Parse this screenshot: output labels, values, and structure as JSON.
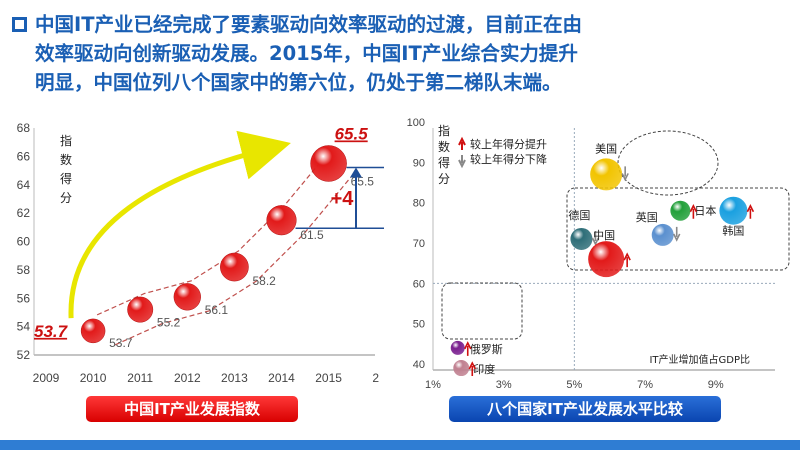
{
  "heading": {
    "line1": "中国IT产业已经完成了要素驱动向效率驱动的过渡，目前正在由",
    "line2": "效率驱动向创新驱动发展。2015年，中国IT产业综合实力提升",
    "line3": "明显，中国位列八个国家中的第六位，仍处于第二梯队末端。"
  },
  "colors": {
    "heading": "#1a5fb4",
    "red_bubble": "#e21a1a",
    "caption_red": "#e00000",
    "caption_blue": "#1256c0"
  },
  "chart_data": [
    {
      "type": "line",
      "title": "中国IT产业发展指数",
      "ylabel_chars": [
        "指",
        "数",
        "得",
        "分"
      ],
      "x_ticks": [
        "2009",
        "2010",
        "2011",
        "2012",
        "2013",
        "2014",
        "2015",
        "2"
      ],
      "y_ticks": [
        "52",
        "54",
        "56",
        "58",
        "60",
        "62",
        "64",
        "66",
        "68"
      ],
      "ylim": [
        52,
        68
      ],
      "points": [
        {
          "year": "2010",
          "value": 53.7,
          "label": "53.7"
        },
        {
          "year": "2011",
          "value": 55.2,
          "label": "55.2"
        },
        {
          "year": "2012",
          "value": 56.1,
          "label": "56.1"
        },
        {
          "year": "2013",
          "value": 58.2,
          "label": "58.2"
        },
        {
          "year": "2014",
          "value": 61.5,
          "label": "61.5"
        },
        {
          "year": "2015",
          "value": 65.5,
          "label": "65.5"
        }
      ],
      "start_callout": "53.7",
      "end_callout": "65.5",
      "delta_label": "+4"
    },
    {
      "type": "scatter",
      "title": "八个国家IT产业发展水平比较",
      "ylabel_chars": [
        "指",
        "数",
        "得",
        "分"
      ],
      "xlabel": "IT产业增加值占GDP比",
      "x_ticks": [
        "1%",
        "3%",
        "5%",
        "7%",
        "9%"
      ],
      "y_ticks": [
        "40",
        "50",
        "60",
        "70",
        "80",
        "90",
        "100"
      ],
      "legend": {
        "up": "较上年得分提升",
        "down": "较上年得分下降"
      },
      "points": [
        {
          "name": "美国",
          "x": 5.9,
          "y": 87,
          "trend": "down",
          "color": "#f2c400"
        },
        {
          "name": "德国",
          "x": 5.2,
          "y": 71,
          "trend": "down",
          "color": "#2e6e78"
        },
        {
          "name": "中国",
          "x": 5.9,
          "y": 66,
          "trend": "up",
          "color": "#e21a1a"
        },
        {
          "name": "英国",
          "x": 7.5,
          "y": 72,
          "trend": "down",
          "color": "#5b90cf"
        },
        {
          "name": "日本",
          "x": 8.0,
          "y": 78,
          "trend": "up",
          "color": "#22a03a"
        },
        {
          "name": "韩国",
          "x": 9.5,
          "y": 78,
          "trend": "up",
          "color": "#1aa0e0"
        },
        {
          "name": "俄罗斯",
          "x": 1.7,
          "y": 44,
          "trend": "up",
          "color": "#7a1f8f"
        },
        {
          "name": "印度",
          "x": 1.8,
          "y": 39,
          "trend": "up",
          "color": "#c08090"
        }
      ]
    }
  ]
}
